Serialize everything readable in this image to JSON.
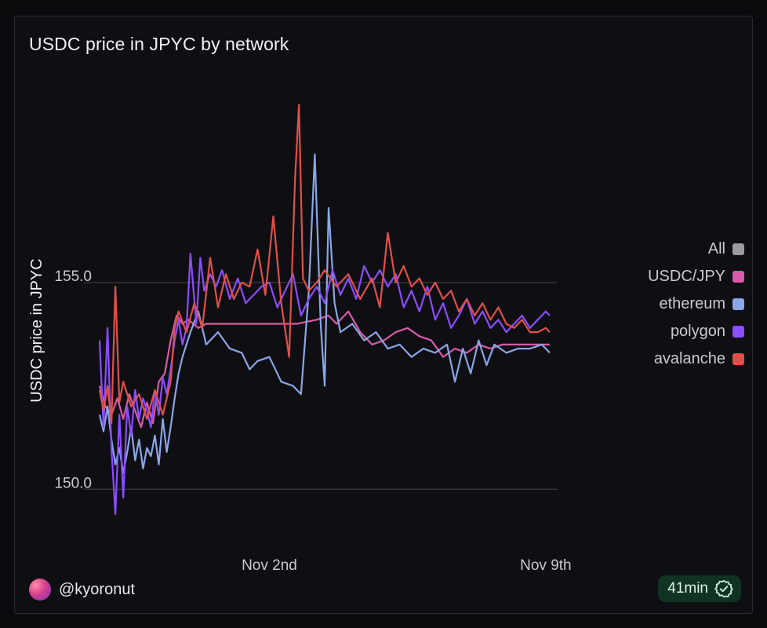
{
  "card": {
    "title": "USDC price in JPYC by network",
    "user": "@kyoronut",
    "refresh_badge": "41min"
  },
  "icons": {
    "avatar": "user-avatar",
    "badge": "check-badge-icon"
  },
  "colors": {
    "background": "#0f0f13",
    "grid": "#3a3a42",
    "text": "#c9c9cf"
  },
  "chart_data": {
    "type": "line",
    "ylabel": "USDC price in JPYC",
    "xlabel": "",
    "x_ticks": [
      {
        "label": "Nov 2nd",
        "x": 4.3
      },
      {
        "label": "Nov 9th",
        "x": 11.3
      }
    ],
    "y_ticks": [
      150.0,
      155.0
    ],
    "y_tick_labels": [
      "150.0",
      "155.0"
    ],
    "xlim": [
      0,
      11.6
    ],
    "ylim": [
      148.6,
      159.8
    ],
    "grid": "horizontal",
    "legend": "right",
    "legend_entries": [
      {
        "name": "All",
        "color": "#9a9aa0"
      },
      {
        "name": "USDC/JPY",
        "color": "#d85aa8"
      },
      {
        "name": "ethereum",
        "color": "#8aa6e6"
      },
      {
        "name": "polygon",
        "color": "#8a4dff"
      },
      {
        "name": "avalanche",
        "color": "#e0504a"
      }
    ],
    "series": [
      {
        "name": "USDC/JPY",
        "color": "#d85aa8",
        "x": [
          0.0,
          0.15,
          0.3,
          0.45,
          0.6,
          0.75,
          0.9,
          1.05,
          1.2,
          1.35,
          1.5,
          1.65,
          1.8,
          1.95,
          2.1,
          2.25,
          2.5,
          2.7,
          2.9,
          3.1,
          3.3,
          3.6,
          4.0,
          4.5,
          5.0,
          5.5,
          5.8,
          6.0,
          6.3,
          6.6,
          6.9,
          7.2,
          7.5,
          7.8,
          8.1,
          8.4,
          8.7,
          9.0,
          9.3,
          9.6,
          9.9,
          10.2,
          10.5,
          10.8,
          11.1,
          11.4
        ],
        "y": [
          152.5,
          152.0,
          151.8,
          152.2,
          151.7,
          152.3,
          151.9,
          151.5,
          152.1,
          151.6,
          152.6,
          152.8,
          153.6,
          154.2,
          154.0,
          154.1,
          153.9,
          154.0,
          154.0,
          154.0,
          154.0,
          154.0,
          154.0,
          154.0,
          154.0,
          154.1,
          154.2,
          154.0,
          154.3,
          153.8,
          153.5,
          153.6,
          153.8,
          153.9,
          153.7,
          153.6,
          153.2,
          153.4,
          153.3,
          153.5,
          153.4,
          153.5,
          153.5,
          153.5,
          153.5,
          153.5
        ]
      },
      {
        "name": "ethereum",
        "color": "#8aa6e6",
        "x": [
          0.0,
          0.1,
          0.2,
          0.3,
          0.4,
          0.5,
          0.6,
          0.7,
          0.8,
          0.9,
          1.0,
          1.1,
          1.2,
          1.3,
          1.4,
          1.5,
          1.6,
          1.7,
          1.8,
          1.9,
          2.0,
          2.1,
          2.3,
          2.5,
          2.7,
          3.0,
          3.3,
          3.6,
          3.8,
          4.0,
          4.3,
          4.6,
          4.9,
          5.1,
          5.3,
          5.45,
          5.6,
          5.7,
          5.8,
          5.95,
          6.1,
          6.4,
          6.7,
          7.0,
          7.3,
          7.6,
          7.9,
          8.2,
          8.5,
          8.8,
          9.0,
          9.2,
          9.4,
          9.6,
          9.8,
          10.0,
          10.3,
          10.6,
          10.9,
          11.2,
          11.4
        ],
        "y": [
          151.8,
          151.4,
          152.0,
          151.2,
          150.6,
          151.0,
          150.4,
          150.9,
          151.5,
          150.7,
          151.2,
          150.5,
          151.0,
          150.8,
          151.3,
          150.6,
          151.7,
          150.9,
          151.5,
          152.2,
          152.8,
          153.2,
          153.8,
          154.3,
          153.5,
          153.8,
          153.4,
          153.3,
          152.9,
          153.1,
          153.2,
          152.6,
          152.5,
          152.3,
          154.8,
          158.1,
          154.0,
          152.5,
          156.8,
          154.5,
          153.8,
          154.0,
          153.6,
          153.8,
          153.4,
          153.5,
          153.2,
          153.4,
          153.3,
          153.5,
          152.6,
          153.4,
          152.8,
          153.6,
          153.0,
          153.5,
          153.3,
          153.4,
          153.4,
          153.5,
          153.3
        ]
      },
      {
        "name": "polygon",
        "color": "#8a4dff",
        "x": [
          0.0,
          0.1,
          0.2,
          0.3,
          0.4,
          0.5,
          0.6,
          0.7,
          0.8,
          0.9,
          1.0,
          1.1,
          1.2,
          1.3,
          1.4,
          1.5,
          1.6,
          1.7,
          1.8,
          1.9,
          2.0,
          2.1,
          2.2,
          2.3,
          2.45,
          2.55,
          2.65,
          2.8,
          2.95,
          3.1,
          3.3,
          3.5,
          3.7,
          3.9,
          4.1,
          4.3,
          4.5,
          4.7,
          4.9,
          5.1,
          5.3,
          5.5,
          5.7,
          5.9,
          6.1,
          6.3,
          6.5,
          6.7,
          6.9,
          7.1,
          7.3,
          7.5,
          7.7,
          7.9,
          8.1,
          8.3,
          8.5,
          8.7,
          8.9,
          9.1,
          9.3,
          9.5,
          9.7,
          9.9,
          10.1,
          10.3,
          10.5,
          10.7,
          10.9,
          11.1,
          11.3,
          11.4
        ],
        "y": [
          153.6,
          151.5,
          153.9,
          151.0,
          149.4,
          151.8,
          149.8,
          152.0,
          151.3,
          152.4,
          151.7,
          152.2,
          151.9,
          151.5,
          152.4,
          151.8,
          152.7,
          152.3,
          152.9,
          153.6,
          154.1,
          153.5,
          153.9,
          155.7,
          154.0,
          155.6,
          154.8,
          155.2,
          154.9,
          155.3,
          154.6,
          155.1,
          154.5,
          154.7,
          154.9,
          155.0,
          154.4,
          154.8,
          155.2,
          154.2,
          154.6,
          154.9,
          154.5,
          155.3,
          154.7,
          155.1,
          154.6,
          155.4,
          155.0,
          155.3,
          154.9,
          155.2,
          154.4,
          154.8,
          154.3,
          154.9,
          154.1,
          154.5,
          153.9,
          154.2,
          154.6,
          154.0,
          154.3,
          153.9,
          154.1,
          153.8,
          154.0,
          154.2,
          153.9,
          154.1,
          154.3,
          154.2
        ]
      },
      {
        "name": "avalanche",
        "color": "#e0504a",
        "x": [
          0.0,
          0.1,
          0.2,
          0.3,
          0.4,
          0.5,
          0.6,
          0.8,
          1.0,
          1.2,
          1.4,
          1.6,
          1.8,
          1.9,
          2.0,
          2.2,
          2.4,
          2.6,
          2.8,
          3.0,
          3.2,
          3.4,
          3.6,
          3.8,
          4.0,
          4.2,
          4.4,
          4.6,
          4.8,
          4.95,
          5.05,
          5.15,
          5.3,
          5.5,
          5.7,
          6.0,
          6.3,
          6.6,
          6.9,
          7.1,
          7.3,
          7.5,
          7.7,
          7.9,
          8.1,
          8.3,
          8.5,
          8.7,
          8.9,
          9.1,
          9.3,
          9.5,
          9.7,
          9.9,
          10.1,
          10.3,
          10.5,
          10.7,
          10.9,
          11.1,
          11.3,
          11.4
        ],
        "y": [
          152.4,
          151.9,
          152.5,
          151.6,
          154.9,
          152.1,
          152.6,
          152.0,
          152.3,
          151.7,
          152.4,
          151.8,
          152.6,
          153.9,
          154.3,
          153.8,
          154.5,
          153.9,
          155.6,
          154.4,
          155.2,
          154.6,
          155.0,
          154.9,
          155.8,
          154.7,
          156.6,
          154.5,
          153.2,
          157.5,
          159.3,
          155.1,
          154.8,
          155.0,
          155.3,
          154.9,
          155.2,
          154.6,
          155.1,
          154.4,
          156.2,
          155.0,
          155.4,
          154.9,
          155.1,
          154.7,
          155.0,
          154.6,
          154.8,
          154.3,
          154.6,
          154.2,
          154.5,
          154.1,
          154.4,
          154.0,
          153.9,
          154.1,
          153.8,
          153.8,
          153.9,
          153.8
        ]
      }
    ]
  }
}
